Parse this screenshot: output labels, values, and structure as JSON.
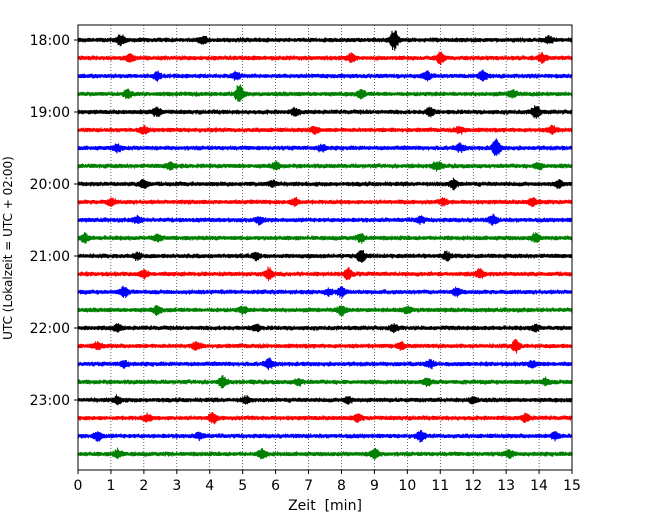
{
  "chart_data": {
    "type": "line",
    "title": "",
    "xlabel": "Zeit  [min]",
    "ylabel": "UTC (Lokalzeit = UTC + 02:00)",
    "xlim": [
      0,
      15
    ],
    "x_ticks": [
      "0",
      "1",
      "2",
      "3",
      "4",
      "5",
      "6",
      "7",
      "8",
      "9",
      "10",
      "11",
      "12",
      "13",
      "14",
      "15"
    ],
    "y_ticks": [
      "18:00",
      "19:00",
      "20:00",
      "21:00",
      "22:00",
      "23:00"
    ],
    "grid": "vertical dotted lines at each minute",
    "colors": [
      "#000000",
      "#ff0000",
      "#0000ff",
      "#008000"
    ],
    "series": [
      {
        "start": "18:00",
        "color": "#000000",
        "events": [
          [
            1.3,
            0.5
          ],
          [
            3.8,
            0.35
          ],
          [
            9.6,
            1.0
          ],
          [
            14.3,
            0.3
          ]
        ]
      },
      {
        "start": "18:15",
        "color": "#ff0000",
        "events": [
          [
            1.6,
            0.4
          ],
          [
            8.3,
            0.35
          ],
          [
            11.0,
            0.5
          ],
          [
            14.1,
            0.4
          ]
        ]
      },
      {
        "start": "18:30",
        "color": "#0000ff",
        "events": [
          [
            2.4,
            0.35
          ],
          [
            4.8,
            0.3
          ],
          [
            10.6,
            0.35
          ],
          [
            12.3,
            0.5
          ]
        ]
      },
      {
        "start": "18:45",
        "color": "#008000",
        "events": [
          [
            1.5,
            0.35
          ],
          [
            4.9,
            0.9
          ],
          [
            8.6,
            0.35
          ],
          [
            13.2,
            0.35
          ]
        ]
      },
      {
        "start": "19:00",
        "color": "#000000",
        "events": [
          [
            2.4,
            0.4
          ],
          [
            6.6,
            0.3
          ],
          [
            10.7,
            0.4
          ],
          [
            13.9,
            0.6
          ]
        ]
      },
      {
        "start": "19:15",
        "color": "#ff0000",
        "events": [
          [
            2.0,
            0.3
          ],
          [
            7.2,
            0.3
          ],
          [
            11.6,
            0.3
          ],
          [
            14.4,
            0.35
          ]
        ]
      },
      {
        "start": "19:30",
        "color": "#0000ff",
        "events": [
          [
            1.2,
            0.35
          ],
          [
            7.4,
            0.3
          ],
          [
            11.6,
            0.35
          ],
          [
            12.7,
            0.8
          ]
        ]
      },
      {
        "start": "19:45",
        "color": "#008000",
        "events": [
          [
            2.8,
            0.35
          ],
          [
            6.0,
            0.3
          ],
          [
            10.9,
            0.4
          ],
          [
            14.0,
            0.3
          ]
        ]
      },
      {
        "start": "20:00",
        "color": "#000000",
        "events": [
          [
            2.0,
            0.45
          ],
          [
            5.9,
            0.3
          ],
          [
            11.4,
            0.45
          ],
          [
            14.6,
            0.3
          ]
        ]
      },
      {
        "start": "20:15",
        "color": "#ff0000",
        "events": [
          [
            1.0,
            0.3
          ],
          [
            6.6,
            0.35
          ],
          [
            11.1,
            0.3
          ],
          [
            13.8,
            0.35
          ]
        ]
      },
      {
        "start": "20:30",
        "color": "#0000ff",
        "events": [
          [
            1.8,
            0.3
          ],
          [
            5.5,
            0.3
          ],
          [
            10.4,
            0.3
          ],
          [
            12.6,
            0.45
          ]
        ]
      },
      {
        "start": "20:45",
        "color": "#008000",
        "events": [
          [
            0.2,
            0.4
          ],
          [
            2.4,
            0.3
          ],
          [
            8.6,
            0.35
          ],
          [
            13.9,
            0.4
          ]
        ]
      },
      {
        "start": "21:00",
        "color": "#000000",
        "events": [
          [
            1.8,
            0.3
          ],
          [
            5.4,
            0.3
          ],
          [
            8.6,
            0.55
          ],
          [
            11.2,
            0.35
          ]
        ]
      },
      {
        "start": "21:15",
        "color": "#ff0000",
        "events": [
          [
            2.0,
            0.35
          ],
          [
            5.8,
            0.55
          ],
          [
            8.2,
            0.45
          ],
          [
            12.2,
            0.4
          ]
        ]
      },
      {
        "start": "21:30",
        "color": "#0000ff",
        "events": [
          [
            1.4,
            0.45
          ],
          [
            7.6,
            0.3
          ],
          [
            8.0,
            0.45
          ],
          [
            11.5,
            0.35
          ]
        ]
      },
      {
        "start": "21:45",
        "color": "#008000",
        "events": [
          [
            2.4,
            0.35
          ],
          [
            5.0,
            0.3
          ],
          [
            8.0,
            0.45
          ],
          [
            10.0,
            0.3
          ]
        ]
      },
      {
        "start": "22:00",
        "color": "#000000",
        "events": [
          [
            1.2,
            0.3
          ],
          [
            5.4,
            0.3
          ],
          [
            9.6,
            0.3
          ],
          [
            13.9,
            0.3
          ]
        ]
      },
      {
        "start": "22:15",
        "color": "#ff0000",
        "events": [
          [
            0.6,
            0.3
          ],
          [
            3.6,
            0.35
          ],
          [
            9.8,
            0.3
          ],
          [
            13.3,
            0.55
          ]
        ]
      },
      {
        "start": "22:30",
        "color": "#0000ff",
        "events": [
          [
            1.4,
            0.3
          ],
          [
            5.8,
            0.45
          ],
          [
            10.7,
            0.35
          ],
          [
            13.8,
            0.3
          ]
        ]
      },
      {
        "start": "22:45",
        "color": "#008000",
        "events": [
          [
            4.4,
            0.5
          ],
          [
            6.7,
            0.3
          ],
          [
            10.6,
            0.35
          ],
          [
            14.2,
            0.3
          ]
        ]
      },
      {
        "start": "23:00",
        "color": "#000000",
        "events": [
          [
            1.2,
            0.35
          ],
          [
            5.1,
            0.3
          ],
          [
            8.2,
            0.3
          ],
          [
            12.0,
            0.3
          ]
        ]
      },
      {
        "start": "23:15",
        "color": "#ff0000",
        "events": [
          [
            2.1,
            0.3
          ],
          [
            4.1,
            0.45
          ],
          [
            8.5,
            0.3
          ],
          [
            13.6,
            0.35
          ]
        ]
      },
      {
        "start": "23:30",
        "color": "#0000ff",
        "events": [
          [
            0.6,
            0.45
          ],
          [
            3.7,
            0.3
          ],
          [
            10.4,
            0.45
          ],
          [
            14.5,
            0.35
          ]
        ]
      },
      {
        "start": "23:45",
        "color": "#008000",
        "events": [
          [
            1.2,
            0.4
          ],
          [
            5.6,
            0.4
          ],
          [
            9.0,
            0.45
          ],
          [
            13.1,
            0.35
          ]
        ]
      }
    ]
  }
}
